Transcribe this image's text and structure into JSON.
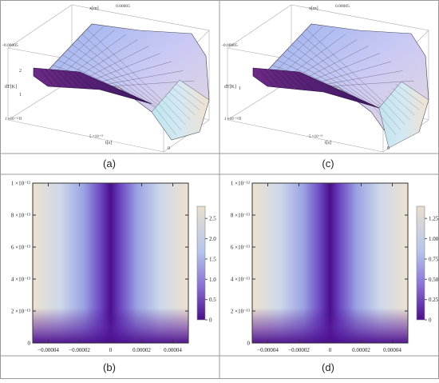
{
  "captions": [
    "(a)",
    "(b)",
    "(c)",
    "(d)"
  ],
  "chart_data": [
    {
      "panel": "(a)",
      "type": "surface3d",
      "axis_labels": {
        "x": "x[m]",
        "t": "t[s]",
        "z": "dT[K]"
      },
      "x_ticks": [
        "-0.00005",
        "0.00005"
      ],
      "t_ticks": [
        "1 ×10⁻¹²",
        "5 ×10⁻¹³",
        "0"
      ],
      "z_ticks": [
        "2",
        "1",
        "0"
      ],
      "zlim": [
        0,
        2.8
      ]
    },
    {
      "panel": "(c)",
      "type": "surface3d",
      "axis_labels": {
        "x": "x[m]",
        "t": "t[s]",
        "z": "dT[K]"
      },
      "x_ticks": [
        "-0.00005",
        "0.00005"
      ],
      "t_ticks": [
        "1 ×10⁻¹²",
        "5 ×10⁻¹³",
        "0"
      ],
      "z_ticks": [
        "1",
        "0"
      ],
      "zlim": [
        0,
        1.4
      ]
    },
    {
      "panel": "(b)",
      "type": "heatmap",
      "x_ticks": [
        -4e-05,
        -2e-05,
        0,
        2e-05,
        4e-05
      ],
      "x_tick_labels": [
        "−0.00004",
        "−0.00002",
        "0",
        "0.00002",
        "0.00004"
      ],
      "y_ticks": [
        0,
        2e-13,
        4e-13,
        6e-13,
        8e-13,
        1e-12
      ],
      "y_tick_labels": [
        "0",
        "2 ×10⁻¹³",
        "4 ×10⁻¹³",
        "6 ×10⁻¹³",
        "8 ×10⁻¹³",
        "1 ×10⁻¹²"
      ],
      "xlim": [
        -5e-05,
        5e-05
      ],
      "ylim": [
        0,
        1e-12
      ],
      "colorbar_ticks": [
        0,
        0.5,
        1.0,
        1.5,
        2.0,
        2.5
      ],
      "colorbar_labels": [
        "0",
        "0.5",
        "1.0",
        "1.5",
        "2.0",
        "2.5"
      ],
      "colorbar_range": [
        0,
        2.8
      ],
      "colors": [
        "#4b0e8c",
        "#8a6fd6",
        "#b4c6ec",
        "#e9dfcc"
      ]
    },
    {
      "panel": "(d)",
      "type": "heatmap",
      "x_ticks": [
        -4e-05,
        -2e-05,
        0,
        2e-05,
        4e-05
      ],
      "x_tick_labels": [
        "−0.00004",
        "−0.00002",
        "0",
        "0.00002",
        "0.00004"
      ],
      "y_ticks": [
        0,
        2e-13,
        4e-13,
        6e-13,
        8e-13,
        1e-12
      ],
      "y_tick_labels": [
        "0",
        "2 ×10⁻¹³",
        "4 ×10⁻¹³",
        "6 ×10⁻¹³",
        "8 ×10⁻¹³",
        "1 ×10⁻¹²"
      ],
      "xlim": [
        -5e-05,
        5e-05
      ],
      "ylim": [
        0,
        1e-12
      ],
      "colorbar_ticks": [
        0,
        0.25,
        0.5,
        0.75,
        1.0,
        1.25
      ],
      "colorbar_labels": [
        "0",
        "0.25",
        "0.50",
        "0.75",
        "1.00",
        "1.25"
      ],
      "colorbar_range": [
        0,
        1.4
      ],
      "colors": [
        "#4b0e8c",
        "#8a6fd6",
        "#b4c6ec",
        "#e9dfcc"
      ]
    }
  ]
}
